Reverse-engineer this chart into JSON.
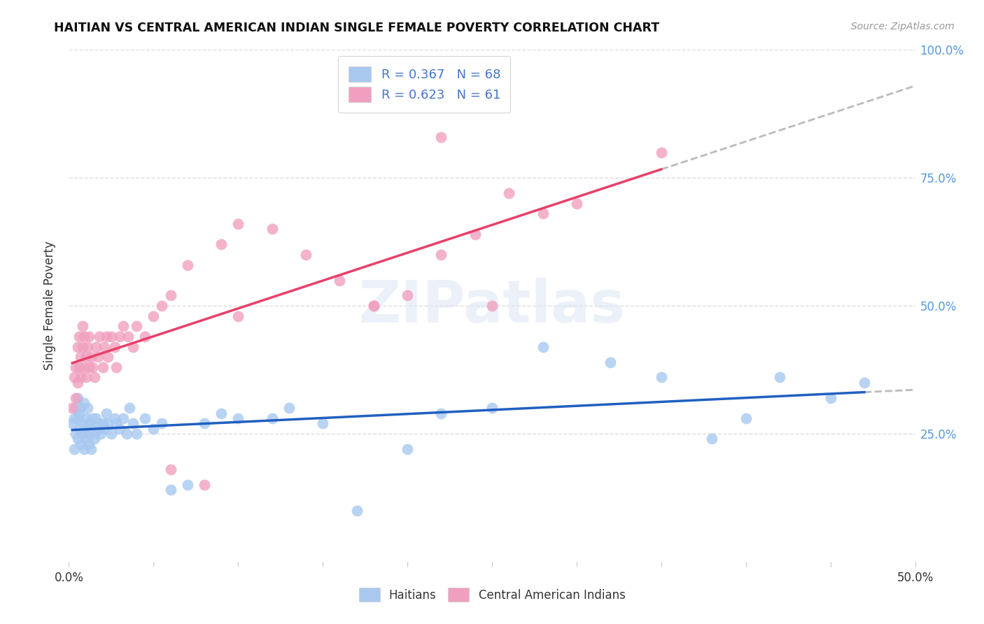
{
  "title": "HAITIAN VS CENTRAL AMERICAN INDIAN SINGLE FEMALE POVERTY CORRELATION CHART",
  "source": "Source: ZipAtlas.com",
  "ylabel": "Single Female Poverty",
  "legend_label1": "Haitians",
  "legend_label2": "Central American Indians",
  "r1": 0.367,
  "n1": 68,
  "r2": 0.623,
  "n2": 61,
  "color_haitian": "#A8C8F0",
  "color_ca_indian": "#F0A0BE",
  "line_color_haitian": "#2060C0",
  "line_color_ca_indian": "#E8406A",
  "xlim": [
    0.0,
    0.5
  ],
  "ylim": [
    0.0,
    1.0
  ],
  "haitian_x": [
    0.002,
    0.003,
    0.003,
    0.004,
    0.004,
    0.005,
    0.005,
    0.005,
    0.006,
    0.006,
    0.007,
    0.007,
    0.008,
    0.008,
    0.009,
    0.009,
    0.01,
    0.01,
    0.01,
    0.011,
    0.011,
    0.012,
    0.012,
    0.013,
    0.013,
    0.014,
    0.015,
    0.015,
    0.016,
    0.017,
    0.018,
    0.019,
    0.02,
    0.021,
    0.022,
    0.023,
    0.025,
    0.027,
    0.028,
    0.03,
    0.032,
    0.034,
    0.036,
    0.038,
    0.04,
    0.045,
    0.05,
    0.055,
    0.06,
    0.07,
    0.08,
    0.09,
    0.1,
    0.12,
    0.13,
    0.15,
    0.17,
    0.2,
    0.22,
    0.25,
    0.28,
    0.32,
    0.35,
    0.38,
    0.4,
    0.42,
    0.45,
    0.47
  ],
  "haitian_y": [
    0.27,
    0.22,
    0.28,
    0.25,
    0.3,
    0.24,
    0.28,
    0.32,
    0.26,
    0.29,
    0.23,
    0.3,
    0.25,
    0.27,
    0.22,
    0.31,
    0.24,
    0.28,
    0.26,
    0.25,
    0.3,
    0.23,
    0.27,
    0.26,
    0.22,
    0.28,
    0.25,
    0.24,
    0.28,
    0.27,
    0.26,
    0.25,
    0.27,
    0.26,
    0.29,
    0.27,
    0.25,
    0.28,
    0.27,
    0.26,
    0.28,
    0.25,
    0.3,
    0.27,
    0.25,
    0.28,
    0.26,
    0.27,
    0.14,
    0.15,
    0.27,
    0.29,
    0.28,
    0.28,
    0.3,
    0.27,
    0.1,
    0.22,
    0.29,
    0.3,
    0.42,
    0.39,
    0.36,
    0.24,
    0.28,
    0.36,
    0.32,
    0.35
  ],
  "ca_indian_x": [
    0.002,
    0.003,
    0.004,
    0.004,
    0.005,
    0.005,
    0.006,
    0.006,
    0.007,
    0.007,
    0.008,
    0.008,
    0.009,
    0.009,
    0.01,
    0.01,
    0.011,
    0.012,
    0.012,
    0.013,
    0.014,
    0.015,
    0.016,
    0.017,
    0.018,
    0.02,
    0.021,
    0.022,
    0.023,
    0.025,
    0.027,
    0.028,
    0.03,
    0.032,
    0.035,
    0.038,
    0.04,
    0.045,
    0.05,
    0.055,
    0.06,
    0.07,
    0.09,
    0.1,
    0.12,
    0.14,
    0.16,
    0.18,
    0.2,
    0.22,
    0.24,
    0.26,
    0.28,
    0.3,
    0.35,
    0.22,
    0.08,
    0.1,
    0.06,
    0.18,
    0.25
  ],
  "ca_indian_y": [
    0.3,
    0.36,
    0.32,
    0.38,
    0.35,
    0.42,
    0.38,
    0.44,
    0.4,
    0.36,
    0.42,
    0.46,
    0.38,
    0.44,
    0.4,
    0.36,
    0.42,
    0.38,
    0.44,
    0.4,
    0.38,
    0.36,
    0.42,
    0.4,
    0.44,
    0.38,
    0.42,
    0.44,
    0.4,
    0.44,
    0.42,
    0.38,
    0.44,
    0.46,
    0.44,
    0.42,
    0.46,
    0.44,
    0.48,
    0.5,
    0.52,
    0.58,
    0.62,
    0.66,
    0.65,
    0.6,
    0.55,
    0.5,
    0.52,
    0.6,
    0.64,
    0.72,
    0.68,
    0.7,
    0.8,
    0.83,
    0.15,
    0.48,
    0.18,
    0.5,
    0.5
  ]
}
